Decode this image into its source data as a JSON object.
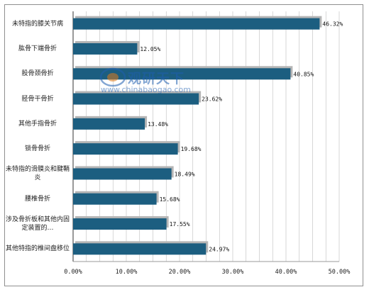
{
  "chart_data": {
    "type": "bar",
    "orientation": "horizontal",
    "categories": [
      "未特指的膝关节病",
      "肱骨下端骨折",
      "股骨颈骨折",
      "胫骨干骨折",
      "其他手指骨折",
      "锁骨骨折",
      "未特指的滑膜炎和腱鞘炎",
      "腰椎骨折",
      "涉及骨折板和其他内固 定装置的…",
      "其他特指的椎间盘移位"
    ],
    "values": [
      46.32,
      12.05,
      40.85,
      23.62,
      13.48,
      19.68,
      18.49,
      15.68,
      17.55,
      24.97
    ],
    "data_labels": [
      "46.32%",
      "12.05%",
      "40.85%",
      "23.62%",
      "13.48%",
      "19.68%",
      "18.49%",
      "15.68%",
      "17.55%",
      "24.97%"
    ],
    "xlim": [
      0,
      50
    ],
    "x_ticks": [
      "0.00%",
      "10.00%",
      "20.00%",
      "30.00%",
      "40.00%",
      "50.00%"
    ],
    "grid": "vertical",
    "bar_color": "#1c5e80",
    "shadow_color": "#b5b5b5",
    "title": "",
    "xlabel": "",
    "ylabel": ""
  },
  "watermark": {
    "brand": "观研天下",
    "url": "www.chinabaogao.com"
  }
}
